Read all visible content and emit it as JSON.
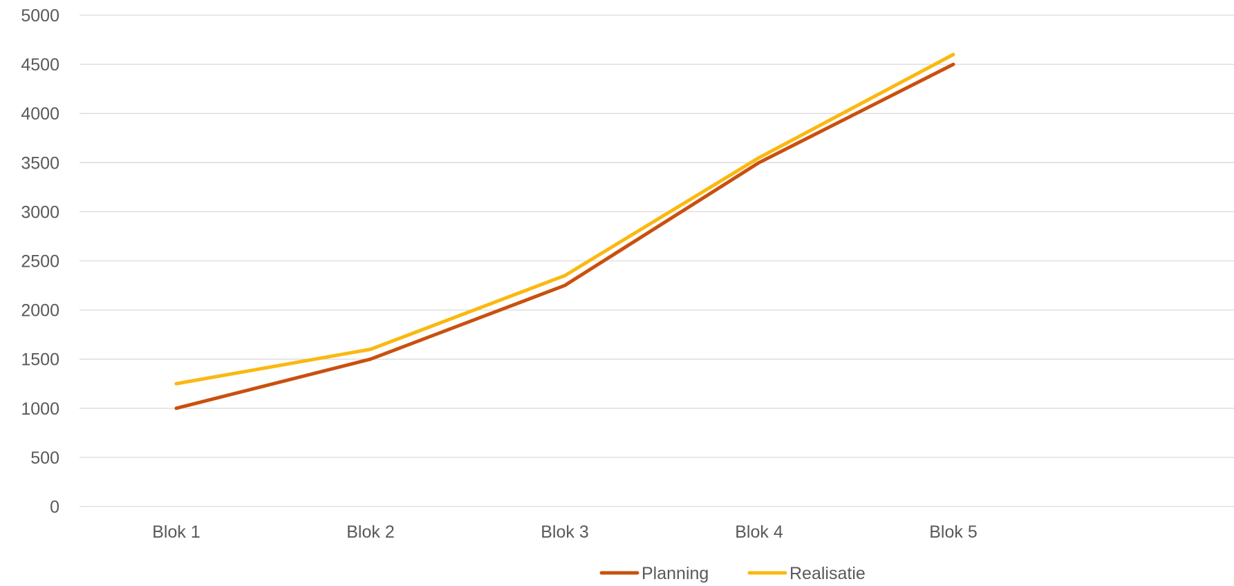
{
  "chart_data": {
    "type": "line",
    "categories": [
      "Blok 1",
      "Blok 2",
      "Blok 3",
      "Blok 4",
      "Blok 5"
    ],
    "series": [
      {
        "name": "Planning",
        "values": [
          1000,
          1500,
          2250,
          3500,
          4500
        ],
        "color": "#c9500e"
      },
      {
        "name": "Realisatie",
        "values": [
          1250,
          1600,
          2350,
          3550,
          4600
        ],
        "color": "#fbb810"
      }
    ],
    "ylim": [
      0,
      5000
    ],
    "yticks": [
      0,
      500,
      1000,
      1500,
      2000,
      2500,
      3000,
      3500,
      4000,
      4500,
      5000
    ],
    "grid": true,
    "legend_position": "bottom",
    "title": "",
    "xlabel": "",
    "ylabel": ""
  }
}
